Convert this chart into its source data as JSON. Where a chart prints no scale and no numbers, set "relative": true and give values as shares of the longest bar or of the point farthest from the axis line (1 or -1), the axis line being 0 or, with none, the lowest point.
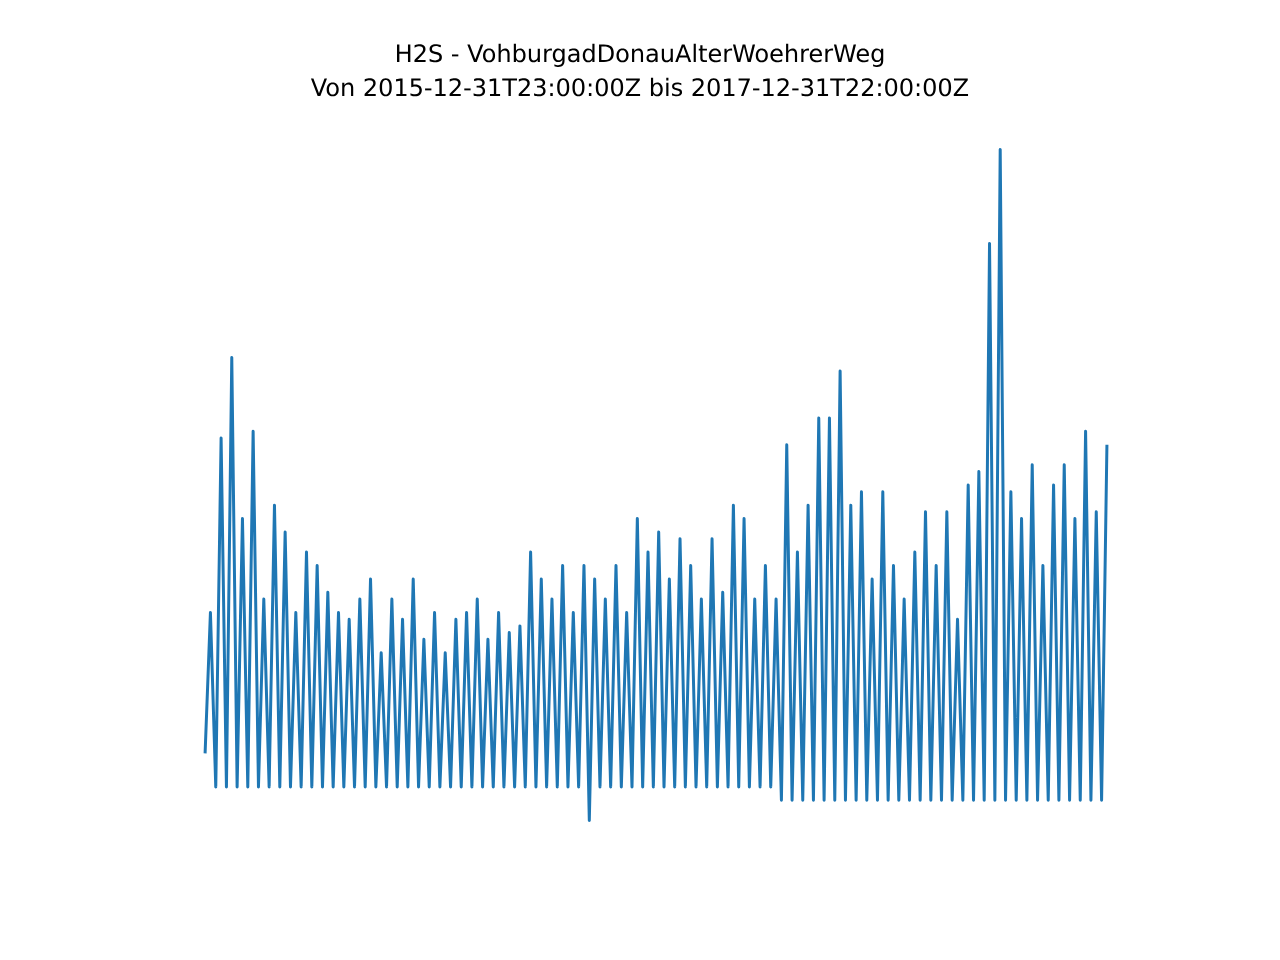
{
  "chart_data": {
    "type": "line",
    "title": "H2S - VohburgadDonauAlterWoehrerWeg",
    "subtitle": "Von 2015-12-31T23:00:00Z bis 2017-12-31T22:00:00Z",
    "relative": true,
    "categories": [
      null,
      null,
      null,
      null,
      null,
      null,
      null,
      null,
      null,
      null,
      null,
      null,
      null,
      null,
      null,
      null,
      null,
      null,
      null,
      null,
      null,
      null,
      null,
      null,
      null,
      null,
      null,
      null,
      null,
      null,
      null,
      null,
      null,
      null,
      null,
      null,
      null,
      null,
      null,
      null,
      null,
      null,
      null,
      null,
      null,
      null,
      null,
      null,
      null,
      null,
      null,
      null,
      null,
      null,
      null,
      null,
      null,
      null,
      null,
      null,
      null,
      null,
      null,
      null,
      null,
      null,
      null,
      null,
      null,
      null,
      null,
      null,
      null,
      null,
      null,
      null,
      null,
      null,
      null,
      null,
      null,
      null,
      null,
      null,
      null,
      null,
      null,
      null,
      null,
      null,
      null,
      null,
      null,
      null,
      null,
      null,
      null,
      null,
      null,
      null,
      null,
      null,
      null,
      null,
      null,
      null,
      null,
      null,
      null,
      null,
      null,
      null,
      null,
      null,
      null,
      null,
      null,
      null,
      null,
      null,
      null,
      null,
      null,
      null,
      null,
      null,
      null,
      null,
      null,
      null,
      null,
      null,
      null,
      null,
      null,
      null,
      null,
      null,
      null,
      null,
      null,
      null,
      null,
      null,
      null,
      null,
      null,
      null,
      null,
      null,
      null,
      null,
      null,
      null,
      null,
      null,
      null,
      null,
      null,
      null,
      null,
      null,
      null,
      null,
      null,
      null,
      null,
      null,
      null,
      null
    ],
    "series": [
      {
        "color": "#1f77b4",
        "values": [
          0.1,
          0.31,
          0.05,
          0.57,
          0.05,
          0.69,
          0.05,
          0.45,
          0.05,
          0.58,
          0.05,
          0.33,
          0.05,
          0.47,
          0.05,
          0.43,
          0.05,
          0.31,
          0.05,
          0.4,
          0.05,
          0.38,
          0.05,
          0.34,
          0.05,
          0.31,
          0.05,
          0.3,
          0.05,
          0.33,
          0.05,
          0.36,
          0.05,
          0.25,
          0.05,
          0.33,
          0.05,
          0.3,
          0.05,
          0.36,
          0.05,
          0.27,
          0.05,
          0.31,
          0.05,
          0.25,
          0.05,
          0.3,
          0.05,
          0.31,
          0.05,
          0.33,
          0.05,
          0.27,
          0.05,
          0.31,
          0.05,
          0.28,
          0.05,
          0.29,
          0.05,
          0.4,
          0.05,
          0.36,
          0.05,
          0.33,
          0.05,
          0.38,
          0.05,
          0.31,
          0.05,
          0.38,
          0,
          0.36,
          0.05,
          0.33,
          0.05,
          0.38,
          0.05,
          0.31,
          0.05,
          0.45,
          0.05,
          0.4,
          0.05,
          0.43,
          0.05,
          0.36,
          0.05,
          0.42,
          0.05,
          0.38,
          0.05,
          0.33,
          0.05,
          0.42,
          0.05,
          0.34,
          0.05,
          0.47,
          0.05,
          0.45,
          0.05,
          0.33,
          0.05,
          0.38,
          0.05,
          0.33,
          0.03,
          0.56,
          0.03,
          0.4,
          0.03,
          0.47,
          0.03,
          0.6,
          0.03,
          0.6,
          0.03,
          0.67,
          0.03,
          0.47,
          0.03,
          0.49,
          0.03,
          0.36,
          0.03,
          0.49,
          0.03,
          0.38,
          0.03,
          0.33,
          0.03,
          0.4,
          0.03,
          0.46,
          0.03,
          0.38,
          0.03,
          0.46,
          0.03,
          0.3,
          0.03,
          0.5,
          0.03,
          0.52,
          0.03,
          0.86,
          0.03,
          1,
          0.03,
          0.49,
          0.03,
          0.45,
          0.03,
          0.53,
          0.03,
          0.38,
          0.03,
          0.5,
          0.03,
          0.53,
          0.03,
          0.45,
          0.03,
          0.58,
          0.03,
          0.46,
          0.03,
          0.56
        ]
      }
    ]
  }
}
